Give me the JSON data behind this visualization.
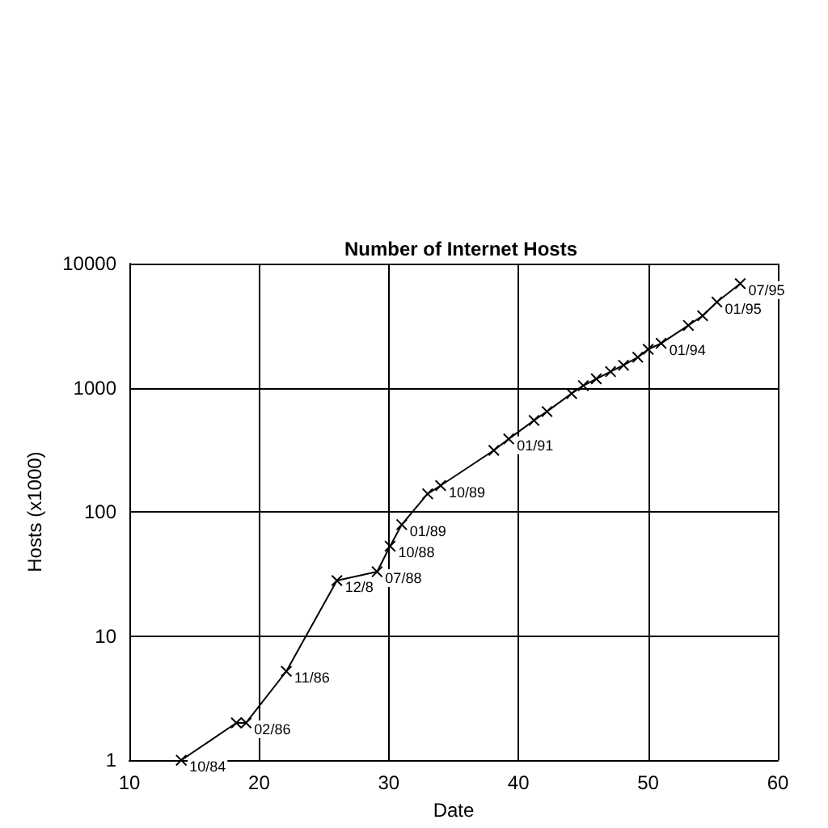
{
  "chart_data": {
    "type": "line",
    "title": "Number of Internet Hosts",
    "xlabel": "Date",
    "ylabel": "Hosts (x1000)",
    "x": [
      14,
      18.25,
      19,
      22.1,
      26,
      29.1,
      30.1,
      31,
      33,
      34,
      38.1,
      39.25,
      41.2,
      42.2,
      44.1,
      45,
      46,
      47.1,
      48.1,
      49.2,
      50,
      51,
      53.1,
      54.2,
      55.3,
      57.1
    ],
    "series": [
      {
        "color": "#000000",
        "values": [
          1,
          2,
          2,
          5.2,
          28,
          33,
          53,
          79,
          140,
          163,
          313,
          387,
          546,
          644,
          899,
          1040,
          1180,
          1350,
          1520,
          1760,
          2040,
          2280,
          3180,
          3800,
          4900,
          6900
        ]
      }
    ],
    "xlim": [
      10,
      60
    ],
    "xticks": [
      10,
      20,
      30,
      40,
      50,
      60
    ],
    "ylim": [
      1,
      10000
    ],
    "yticks": [
      1,
      10,
      100,
      1000,
      10000
    ],
    "log": "y",
    "grid": true,
    "marker": "cross",
    "line_style": "solid",
    "annotations": [
      {
        "text": "10/84",
        "x": 14,
        "y": 1
      },
      {
        "text": "02/86",
        "x": 19,
        "y": 2
      },
      {
        "text": "11/86",
        "x": 22.1,
        "y": 5.2
      },
      {
        "text": "12/8",
        "x": 26,
        "y": 28
      },
      {
        "text": "07/88",
        "x": 29.1,
        "y": 33
      },
      {
        "text": "10/88",
        "x": 30.1,
        "y": 53
      },
      {
        "text": "01/89",
        "x": 31,
        "y": 79
      },
      {
        "text": "10/89",
        "x": 34,
        "y": 163
      },
      {
        "text": "01/91",
        "x": 39.25,
        "y": 387
      },
      {
        "text": "01/94",
        "x": 51,
        "y": 2280
      },
      {
        "text": "01/95",
        "x": 55.3,
        "y": 4900
      },
      {
        "text": "07/95",
        "x": 57.1,
        "y": 6900
      }
    ]
  }
}
